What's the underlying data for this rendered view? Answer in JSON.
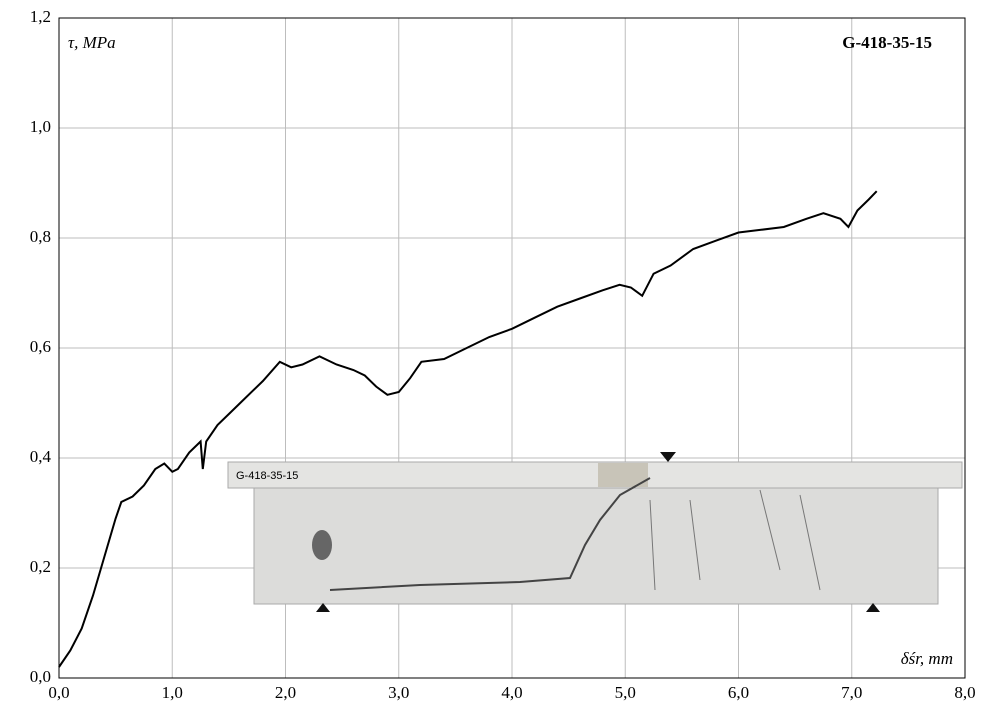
{
  "chart_data": {
    "type": "line",
    "title": "G-418-35-15",
    "y_label": "τ, MPa",
    "x_label": "δśr, mm",
    "inset_label": "G-418-35-15",
    "xlim": [
      0,
      8
    ],
    "ylim": [
      0,
      1.2
    ],
    "xticks": [
      {
        "value": 0,
        "label": "0,0"
      },
      {
        "value": 1,
        "label": "1,0"
      },
      {
        "value": 2,
        "label": "2,0"
      },
      {
        "value": 3,
        "label": "3,0"
      },
      {
        "value": 4,
        "label": "4,0"
      },
      {
        "value": 5,
        "label": "5,0"
      },
      {
        "value": 6,
        "label": "6,0"
      },
      {
        "value": 7,
        "label": "7,0"
      },
      {
        "value": 8,
        "label": "8,0"
      }
    ],
    "yticks": [
      {
        "value": 0,
        "label": "0,0"
      },
      {
        "value": 0.2,
        "label": "0,2"
      },
      {
        "value": 0.4,
        "label": "0,4"
      },
      {
        "value": 0.6,
        "label": "0,6"
      },
      {
        "value": 0.8,
        "label": "0,8"
      },
      {
        "value": 1,
        "label": "1,0"
      },
      {
        "value": 1.2,
        "label": "1,2"
      }
    ],
    "grid": true,
    "color": "#000000",
    "x": [
      0,
      0.1,
      0.2,
      0.3,
      0.4,
      0.5,
      0.55,
      0.65,
      0.75,
      0.85,
      0.93,
      1.0,
      1.05,
      1.15,
      1.25,
      1.27,
      1.3,
      1.4,
      1.5,
      1.6,
      1.8,
      1.95,
      2.05,
      2.15,
      2.3,
      2.45,
      2.6,
      2.7,
      2.8,
      2.9,
      3.0,
      3.1,
      3.2,
      3.4,
      3.6,
      3.8,
      4.0,
      4.2,
      4.4,
      4.6,
      4.8,
      4.95,
      5.05,
      5.15,
      5.25,
      5.4,
      5.6,
      5.8,
      6.0,
      6.2,
      6.4,
      6.6,
      6.75,
      6.9,
      6.97,
      7.05,
      7.15,
      7.22
    ],
    "values": [
      0.02,
      0.05,
      0.09,
      0.15,
      0.22,
      0.29,
      0.32,
      0.33,
      0.35,
      0.38,
      0.39,
      0.375,
      0.38,
      0.41,
      0.43,
      0.38,
      0.43,
      0.46,
      0.48,
      0.5,
      0.54,
      0.575,
      0.565,
      0.57,
      0.585,
      0.57,
      0.56,
      0.55,
      0.53,
      0.515,
      0.52,
      0.545,
      0.575,
      0.58,
      0.6,
      0.62,
      0.635,
      0.655,
      0.675,
      0.69,
      0.705,
      0.715,
      0.71,
      0.695,
      0.735,
      0.75,
      0.78,
      0.795,
      0.81,
      0.815,
      0.82,
      0.835,
      0.845,
      0.835,
      0.82,
      0.85,
      0.87,
      0.885
    ]
  }
}
